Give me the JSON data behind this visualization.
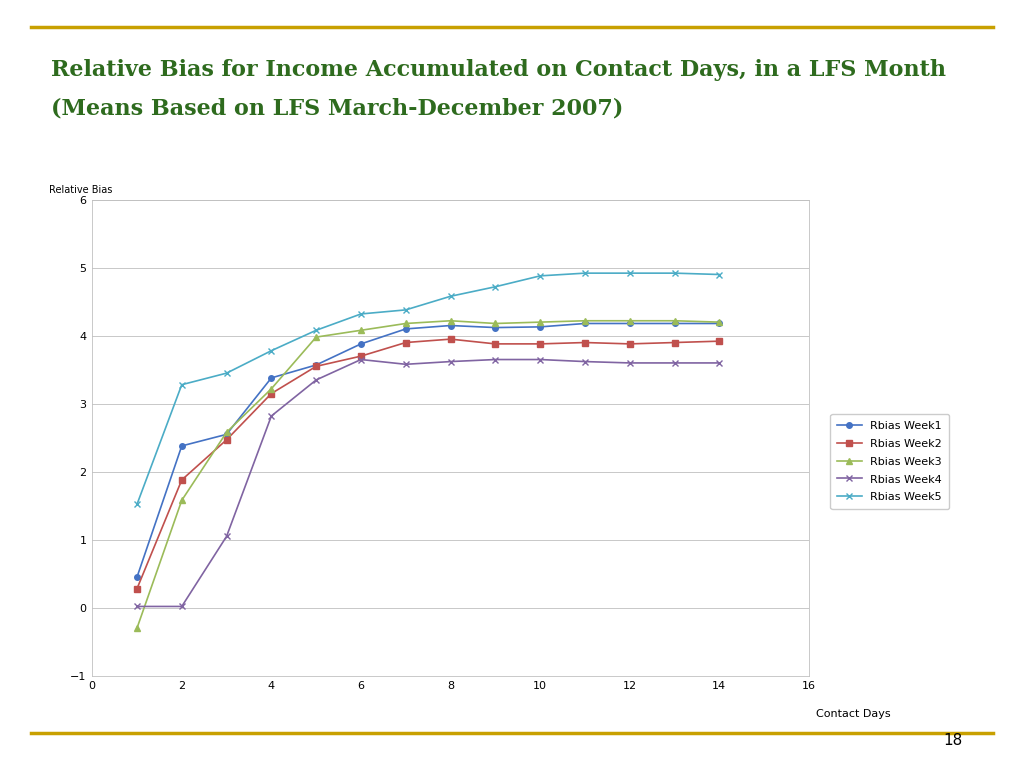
{
  "title_line1": "Relative Bias for Income Accumulated on Contact Days, in a LFS Month",
  "title_line2": "(Means Based on LFS March-December 2007)",
  "title_color": "#2E6B1E",
  "xlabel": "Contact Days",
  "ylabel": "Relative Bias",
  "xlim": [
    0,
    16
  ],
  "ylim": [
    -1,
    6
  ],
  "xticks": [
    0,
    2,
    4,
    6,
    8,
    10,
    12,
    14,
    16
  ],
  "yticks": [
    -1,
    0,
    1,
    2,
    3,
    4,
    5,
    6
  ],
  "page_number": "18",
  "series": [
    {
      "label": "Rbias Week1",
      "color": "#4472C4",
      "marker": "o",
      "marker_size": 4,
      "x": [
        1,
        2,
        3,
        4,
        5,
        6,
        7,
        8,
        9,
        10,
        11,
        12,
        13,
        14
      ],
      "y": [
        0.45,
        2.38,
        2.55,
        3.38,
        3.57,
        3.88,
        4.1,
        4.15,
        4.12,
        4.13,
        4.18,
        4.18,
        4.18,
        4.18
      ]
    },
    {
      "label": "Rbias Week2",
      "color": "#C0504D",
      "marker": "s",
      "marker_size": 4,
      "x": [
        1,
        2,
        3,
        4,
        5,
        6,
        7,
        8,
        9,
        10,
        11,
        12,
        13,
        14
      ],
      "y": [
        0.28,
        1.88,
        2.47,
        3.15,
        3.55,
        3.7,
        3.9,
        3.95,
        3.88,
        3.88,
        3.9,
        3.88,
        3.9,
        3.92
      ]
    },
    {
      "label": "Rbias Week3",
      "color": "#9BBB59",
      "marker": "^",
      "marker_size": 4,
      "x": [
        1,
        2,
        3,
        4,
        5,
        6,
        7,
        8,
        9,
        10,
        11,
        12,
        13,
        14
      ],
      "y": [
        -0.3,
        1.58,
        2.58,
        3.22,
        3.98,
        4.08,
        4.18,
        4.22,
        4.18,
        4.2,
        4.22,
        4.22,
        4.22,
        4.2
      ]
    },
    {
      "label": "Rbias Week4",
      "color": "#8064A2",
      "marker": "x",
      "marker_size": 5,
      "x": [
        1,
        2,
        3,
        4,
        5,
        6,
        7,
        8,
        9,
        10,
        11,
        12,
        13,
        14
      ],
      "y": [
        0.02,
        0.02,
        1.05,
        2.82,
        3.35,
        3.65,
        3.58,
        3.62,
        3.65,
        3.65,
        3.62,
        3.6,
        3.6,
        3.6
      ]
    },
    {
      "label": "Rbias Week5",
      "color": "#4BACC6",
      "marker": "x",
      "marker_size": 5,
      "x": [
        1,
        2,
        3,
        4,
        5,
        6,
        7,
        8,
        9,
        10,
        11,
        12,
        13,
        14
      ],
      "y": [
        1.52,
        3.28,
        3.45,
        3.78,
        4.08,
        4.32,
        4.38,
        4.58,
        4.72,
        4.88,
        4.92,
        4.92,
        4.92,
        4.9
      ]
    }
  ],
  "background_color": "#FFFFFF",
  "plot_bg_color": "#FFFFFF",
  "grid_color": "#C8C8C8",
  "border_color": "#C8A000",
  "figsize": [
    10.24,
    7.68
  ],
  "dpi": 100
}
